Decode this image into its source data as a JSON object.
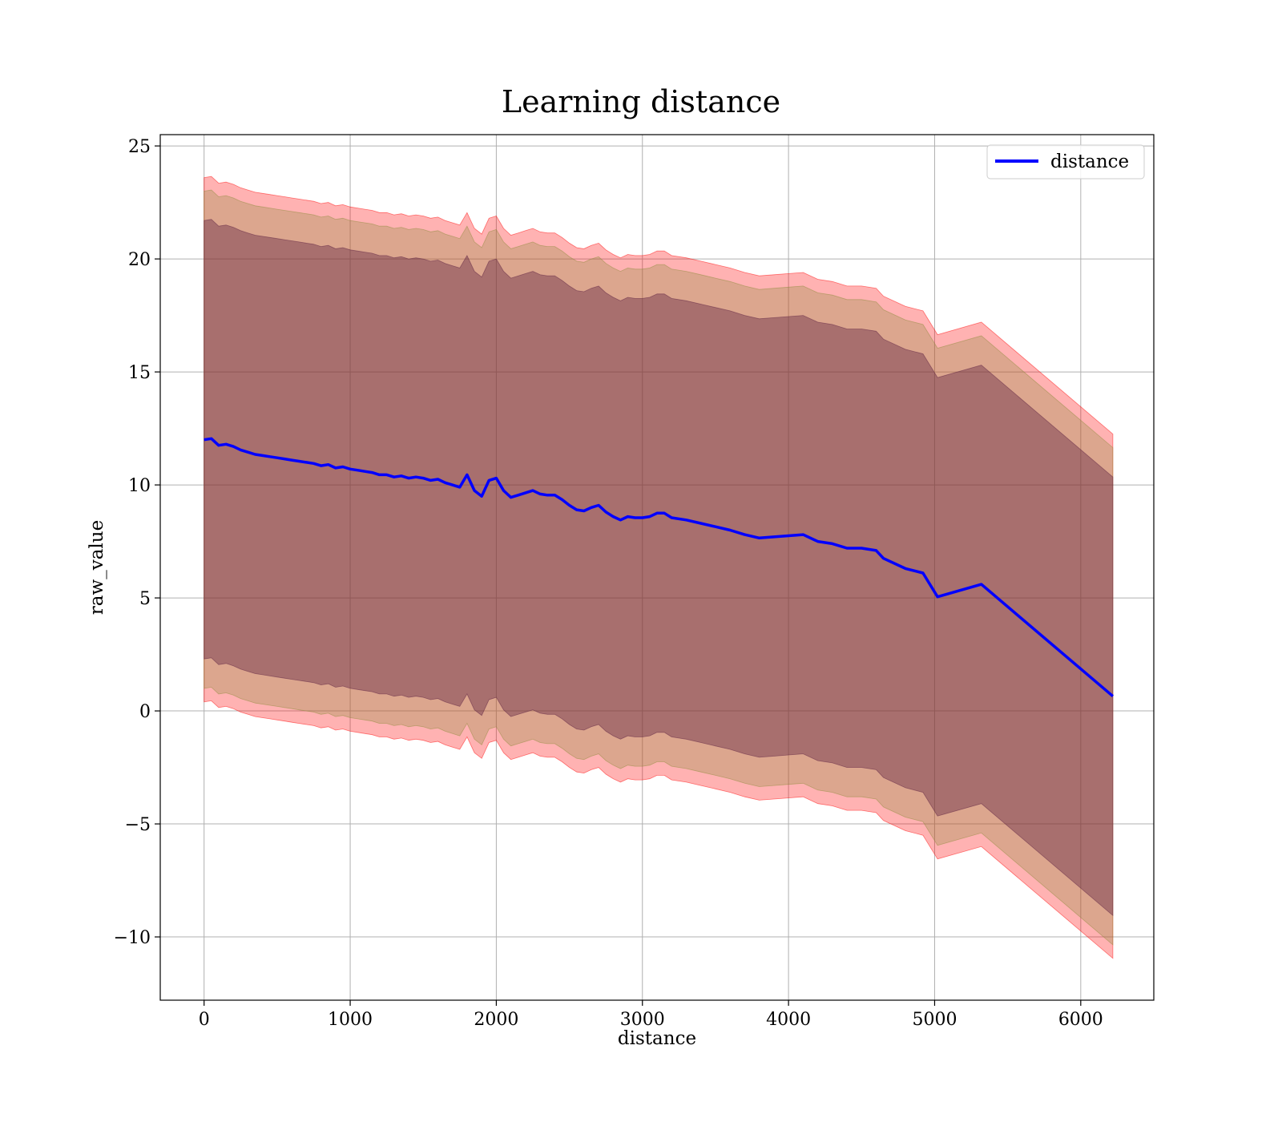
{
  "chart_data": {
    "type": "line",
    "title": "Learning distance",
    "xlabel": "distance",
    "ylabel": "raw_value",
    "xlim": [
      -300,
      6500
    ],
    "ylim": [
      -12.8,
      25.5
    ],
    "xticks": [
      0,
      1000,
      2000,
      3000,
      4000,
      5000,
      6000
    ],
    "xtick_labels": [
      "0",
      "1000",
      "2000",
      "3000",
      "4000",
      "5000",
      "6000"
    ],
    "yticks": [
      -10,
      -5,
      0,
      5,
      10,
      15,
      20,
      25
    ],
    "ytick_labels": [
      "−10",
      "−5",
      "0",
      "5",
      "10",
      "15",
      "20",
      "25"
    ],
    "grid": true,
    "legend": {
      "position": "top-right",
      "entries": [
        "distance"
      ]
    },
    "colors": {
      "line": "#0000ff",
      "outer_band": "#ff0000",
      "middle_band": "#8b8b3a",
      "inner_band": "#5a1d3f"
    },
    "band_opacity": {
      "outer": 0.3,
      "middle": 0.3,
      "inner": 0.4
    },
    "series": [
      {
        "name": "distance",
        "x": [
          0,
          50,
          100,
          150,
          200,
          250,
          300,
          350,
          400,
          450,
          500,
          550,
          600,
          650,
          700,
          750,
          800,
          850,
          900,
          950,
          1000,
          1050,
          1100,
          1150,
          1200,
          1250,
          1300,
          1350,
          1400,
          1450,
          1500,
          1550,
          1600,
          1650,
          1700,
          1750,
          1800,
          1850,
          1900,
          1950,
          2000,
          2050,
          2100,
          2150,
          2200,
          2250,
          2300,
          2350,
          2400,
          2450,
          2500,
          2550,
          2600,
          2650,
          2700,
          2750,
          2800,
          2850,
          2900,
          2950,
          3000,
          3050,
          3100,
          3150,
          3200,
          3300,
          3400,
          3500,
          3600,
          3700,
          3800,
          3900,
          4000,
          4100,
          4200,
          4300,
          4400,
          4500,
          4600,
          4650,
          4800,
          4920,
          5020,
          5320,
          6220
        ],
        "values": [
          12.0,
          12.05,
          11.75,
          11.8,
          11.7,
          11.55,
          11.45,
          11.35,
          11.3,
          11.25,
          11.2,
          11.15,
          11.1,
          11.05,
          11.0,
          10.95,
          10.85,
          10.9,
          10.75,
          10.8,
          10.7,
          10.65,
          10.6,
          10.55,
          10.45,
          10.45,
          10.35,
          10.4,
          10.3,
          10.35,
          10.3,
          10.2,
          10.25,
          10.1,
          10.0,
          9.9,
          10.45,
          9.75,
          9.5,
          10.2,
          10.3,
          9.75,
          9.45,
          9.55,
          9.65,
          9.75,
          9.6,
          9.55,
          9.55,
          9.35,
          9.1,
          8.9,
          8.85,
          9.0,
          9.1,
          8.8,
          8.6,
          8.45,
          8.6,
          8.55,
          8.55,
          8.6,
          8.75,
          8.75,
          8.55,
          8.45,
          8.3,
          8.15,
          8.0,
          7.8,
          7.65,
          7.7,
          7.75,
          7.8,
          7.5,
          7.4,
          7.2,
          7.2,
          7.1,
          6.75,
          6.3,
          6.1,
          5.05,
          5.6,
          0.65
        ],
        "bands": [
          {
            "name": "outer",
            "offset": 11.6
          },
          {
            "name": "middle",
            "offset": 11.0
          },
          {
            "name": "inner",
            "offset": 9.7
          }
        ]
      }
    ]
  }
}
